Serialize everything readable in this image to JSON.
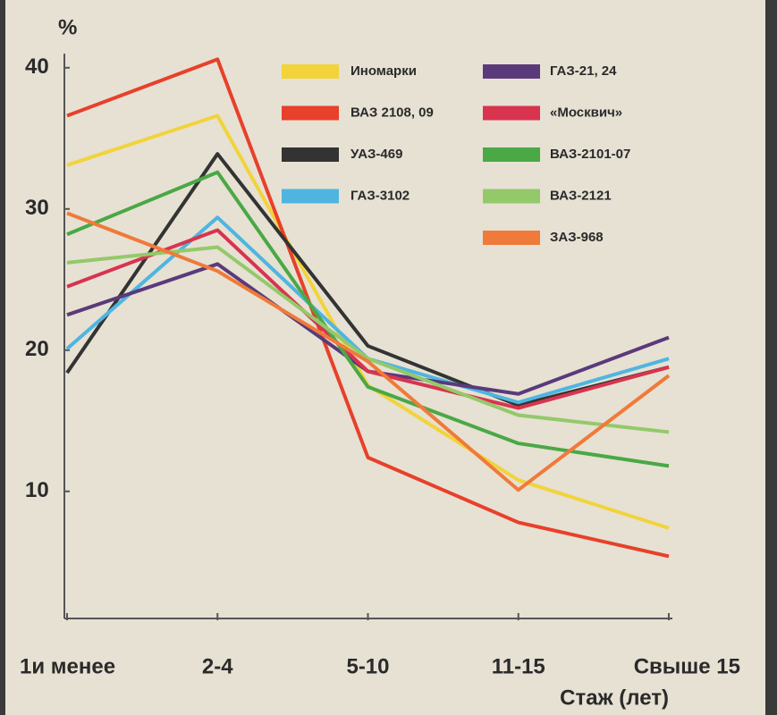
{
  "chart_data": {
    "type": "line",
    "y_label": "%",
    "x_label": "Стаж (лет)",
    "categories": [
      "1и менее",
      "2-4",
      "5-10",
      "11-15",
      "Свыше 15"
    ],
    "ylim": [
      1,
      41
    ],
    "yticks": [
      10,
      20,
      30,
      40
    ],
    "series": [
      {
        "name": "Иномарки",
        "color": "#f2d33a",
        "values": [
          33.1,
          36.6,
          17.5,
          10.8,
          7.4
        ]
      },
      {
        "name": "ВАЗ 2108, 09",
        "color": "#e8402a",
        "values": [
          36.6,
          40.6,
          12.4,
          7.8,
          5.4
        ]
      },
      {
        "name": "УАЗ-469",
        "color": "#333333",
        "values": [
          18.4,
          33.9,
          20.3,
          16.1,
          18.8
        ]
      },
      {
        "name": "ГАЗ-3102",
        "color": "#4fb5e0",
        "values": [
          20.1,
          29.4,
          19.4,
          16.3,
          19.4
        ]
      },
      {
        "name": "ГАЗ-21, 24",
        "color": "#5a3a7a",
        "values": [
          22.5,
          26.1,
          18.5,
          16.9,
          20.9
        ]
      },
      {
        "name": "«Москвич»",
        "color": "#d8344f",
        "values": [
          24.5,
          28.5,
          18.5,
          15.9,
          18.8
        ]
      },
      {
        "name": "ВАЗ-2101-07",
        "color": "#4aa845",
        "values": [
          28.2,
          32.6,
          17.4,
          13.4,
          11.8
        ]
      },
      {
        "name": "ВАЗ-2121",
        "color": "#94c96a",
        "values": [
          26.2,
          27.3,
          19.4,
          15.4,
          14.2
        ]
      },
      {
        "name": "ЗАЗ-968",
        "color": "#f07a3a",
        "values": [
          29.7,
          25.6,
          19.2,
          10.1,
          18.2
        ]
      }
    ]
  }
}
